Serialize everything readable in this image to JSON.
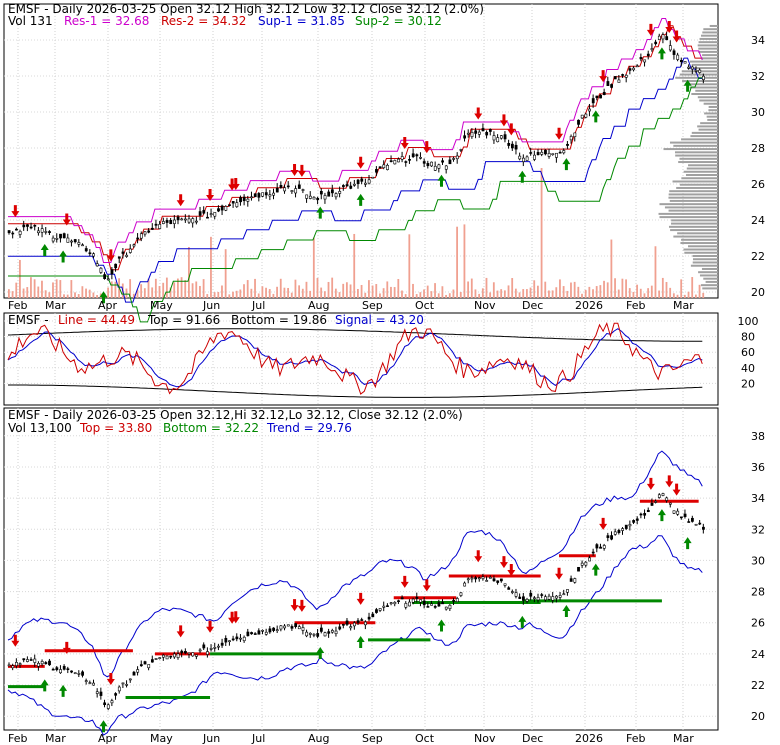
{
  "chart_data": [
    {
      "type": "candlestick",
      "panel": "price",
      "title": "EMSF - Daily 2026-03-25 Open 32.12  High 32.12  Low 32.12  Close 32.12 (2.0%)",
      "legend_line": {
        "prefix": "Vol 131",
        "items": [
          {
            "label": "Res-1 = 32.68",
            "color": "#cc00cc"
          },
          {
            "label": "Res-2 = 34.32",
            "color": "#cc0000"
          },
          {
            "label": "Sup-1 = 31.85",
            "color": "#0000cc"
          },
          {
            "label": "Sup-2 = 30.12",
            "color": "#008800"
          }
        ]
      },
      "ylim": [
        20,
        35
      ],
      "yticks": [
        "34",
        "32",
        "30",
        "28",
        "26",
        "24",
        "22",
        "20"
      ],
      "x_months": [
        "Feb",
        "Mar",
        "Apr",
        "May",
        "Jun",
        "Jul",
        "Aug",
        "Sep",
        "Oct",
        "Nov",
        "Dec",
        "2026",
        "Feb",
        "Mar"
      ],
      "close_series_approx": [
        23.3,
        23.6,
        23.5,
        23.2,
        23.0,
        22.6,
        22.2,
        20.6,
        21.8,
        22.7,
        23.4,
        23.8,
        23.9,
        24.0,
        24.2,
        24.5,
        25.0,
        25.2,
        25.4,
        25.6,
        25.9,
        25.6,
        25.2,
        25.4,
        25.8,
        25.9,
        26.2,
        27.0,
        27.3,
        27.5,
        27.2,
        27.0,
        27.3,
        28.7,
        28.9,
        28.8,
        28.3,
        27.5,
        27.6,
        27.8,
        27.9,
        29.4,
        30.4,
        31.2,
        32.0,
        32.4,
        33.2,
        34.3,
        33.2,
        32.4,
        32.1
      ],
      "colors": {
        "res1": "#cc00cc",
        "res2": "#cc0000",
        "sup1": "#0000cc",
        "sup2": "#008800",
        "volume": "#f0a090",
        "volume_profile": "#a0a0a0",
        "buy_arrow": "#008800",
        "sell_arrow": "#dd0000"
      }
    },
    {
      "type": "line",
      "panel": "stochastic",
      "title": "EMSF - Line = 44.49, Top = 91.66, Bottom = 19.86, Signal = 43.20",
      "items": [
        {
          "label": "Line = 44.49",
          "color": "#cc0000"
        },
        {
          "label": "Top = 91.66",
          "color": "#000000"
        },
        {
          "label": "Bottom = 19.86",
          "color": "#000000"
        },
        {
          "label": "Signal = 43.20",
          "color": "#0000cc"
        }
      ],
      "ylim": [
        0,
        100
      ],
      "yticks": [
        "100",
        "80",
        "60",
        "40",
        "20"
      ]
    },
    {
      "type": "candlestick",
      "panel": "trend",
      "title": "EMSF - Daily 2026-03-25 Open 32.12,Hi 32.12,Lo 32.12, Close 32.12 (2.0%)",
      "legend_line": {
        "prefix": "Vol 13,100",
        "items": [
          {
            "label": "Top = 33.80",
            "color": "#cc0000"
          },
          {
            "label": "Bottom = 32.22",
            "color": "#008800"
          },
          {
            "label": "Trend = 29.76",
            "color": "#0000cc"
          }
        ]
      },
      "ylim": [
        19.5,
        38.5
      ],
      "yticks": [
        "38",
        "36",
        "34",
        "32",
        "30",
        "28",
        "26",
        "24",
        "22",
        "20"
      ],
      "x_months": [
        "Feb",
        "Mar",
        "Apr",
        "May",
        "Jun",
        "Jul",
        "Aug",
        "Sep",
        "Oct",
        "Nov",
        "Dec",
        "2026",
        "Feb",
        "Mar"
      ]
    }
  ]
}
